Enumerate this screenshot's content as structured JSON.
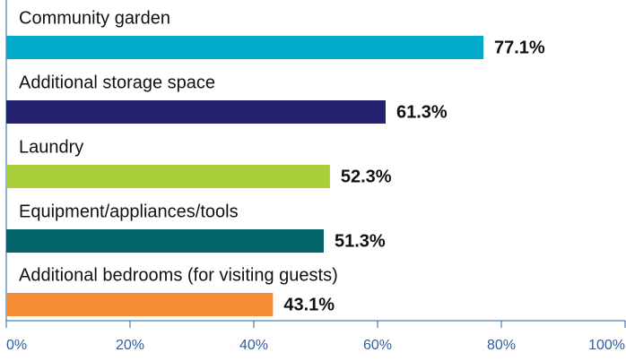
{
  "chart_data": {
    "type": "bar",
    "orientation": "horizontal",
    "categories": [
      "Community garden",
      "Additional storage space",
      "Laundry",
      "Equipment/appliances/tools",
      "Additional bedrooms (for visiting guests)"
    ],
    "values": [
      77.1,
      61.3,
      52.3,
      51.3,
      43.1
    ],
    "value_labels": [
      "77.1%",
      "61.3%",
      "52.3%",
      "51.3%",
      "43.1%"
    ],
    "colors": [
      "#00aac8",
      "#24216e",
      "#a8cf3a",
      "#006468",
      "#f58b33"
    ],
    "xlim": [
      0,
      100
    ],
    "xticks": [
      {
        "value": 0,
        "label": "0%"
      },
      {
        "value": 20,
        "label": "20%"
      },
      {
        "value": 40,
        "label": "40%"
      },
      {
        "value": 60,
        "label": "60%"
      },
      {
        "value": 80,
        "label": "80%"
      },
      {
        "value": 100,
        "label": "100%"
      }
    ]
  }
}
